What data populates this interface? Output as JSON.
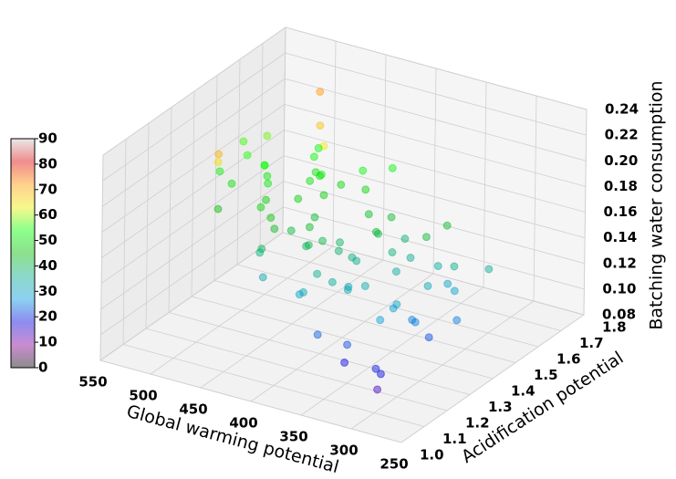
{
  "chart_data": {
    "type": "scatter3d",
    "xlabel": "Global warming potential",
    "ylabel": "Acidification potential",
    "zlabel": "Batching water consumption",
    "xlim": [
      550,
      250
    ],
    "xticks": [
      250,
      300,
      350,
      400,
      450,
      500,
      550
    ],
    "ylim": [
      1.0,
      1.8
    ],
    "yticks": [
      {
        "value": 1.0,
        "label": "1.0"
      },
      1.1,
      1.2,
      1.3,
      1.4,
      1.5,
      1.6,
      1.7,
      1.8
    ],
    "zlim": [
      0.08,
      0.24
    ],
    "zticks": [
      0.08,
      {
        "value": 0.1,
        "label": "0.10"
      },
      0.12,
      0.14,
      0.16,
      0.18,
      {
        "value": 0.2,
        "label": "0.20"
      },
      0.22,
      0.24
    ],
    "clim": [
      0,
      90
    ],
    "cticks": [
      0,
      10,
      20,
      30,
      40,
      50,
      60,
      70,
      80,
      90
    ],
    "colormap": [
      "#000000",
      "#880099",
      "#0000dd",
      "#0099dd",
      "#00aa88",
      "#00bb00",
      "#00ff00",
      "#eeee00",
      "#ff9900",
      "#dd0000",
      "#cccccc"
    ],
    "alpha": 0.45,
    "grid": true,
    "x": [
      310,
      325,
      340,
      355,
      370,
      385,
      400,
      415,
      430,
      445,
      460,
      475,
      490,
      505,
      330,
      350,
      365,
      380,
      395,
      410,
      425,
      440,
      455,
      470,
      485,
      320,
      345,
      360,
      375,
      390,
      405,
      420,
      435,
      450,
      465,
      480,
      495,
      335,
      352,
      368,
      383,
      398,
      412,
      428,
      442,
      458,
      472,
      488,
      315,
      338,
      362,
      378,
      392,
      408,
      422,
      438,
      452,
      468,
      482,
      498,
      305,
      342,
      372,
      402,
      432,
      462,
      492,
      318,
      348,
      388,
      418,
      448,
      478,
      332,
      358,
      398,
      438,
      468,
      345,
      425
    ],
    "y": [
      1.15,
      1.45,
      1.3,
      1.62,
      1.22,
      1.55,
      1.38,
      1.68,
      1.18,
      1.5,
      1.33,
      1.6,
      1.25,
      1.42,
      1.58,
      1.2,
      1.48,
      1.35,
      1.65,
      1.28,
      1.15,
      1.45,
      1.3,
      1.62,
      1.22,
      1.55,
      1.38,
      1.68,
      1.18,
      1.5,
      1.33,
      1.6,
      1.25,
      1.42,
      1.58,
      1.2,
      1.48,
      1.35,
      1.65,
      1.28,
      1.15,
      1.45,
      1.3,
      1.62,
      1.22,
      1.55,
      1.38,
      1.68,
      1.18,
      1.5,
      1.33,
      1.6,
      1.25,
      1.42,
      1.58,
      1.2,
      1.48,
      1.35,
      1.65,
      1.28,
      1.15,
      1.45,
      1.3,
      1.62,
      1.22,
      1.55,
      1.38,
      1.68,
      1.18,
      1.5,
      1.33,
      1.6,
      1.25,
      1.42,
      1.58,
      1.2,
      1.48,
      1.35,
      1.65,
      1.28
    ],
    "z": [
      0.106,
      0.09,
      0.119,
      0.118,
      0.152,
      0.131,
      0.15,
      0.174,
      0.148,
      0.185,
      0.196,
      0.18,
      0.209,
      0.208,
      0.128,
      0.11,
      0.129,
      0.153,
      0.127,
      0.164,
      0.175,
      0.159,
      0.188,
      0.187,
      0.221,
      0.092,
      0.117,
      0.141,
      0.115,
      0.152,
      0.163,
      0.147,
      0.176,
      0.175,
      0.209,
      0.188,
      0.207,
      0.126,
      0.101,
      0.139,
      0.15,
      0.134,
      0.162,
      0.162,
      0.195,
      0.175,
      0.193,
      0.218,
      0.085,
      0.121,
      0.137,
      0.122,
      0.15,
      0.15,
      0.183,
      0.163,
      0.181,
      0.206,
      0.179,
      0.217,
      0.103,
      0.1,
      0.138,
      0.146,
      0.189,
      0.177,
      0.205,
      0.116,
      0.099,
      0.151,
      0.171,
      0.164,
      0.202,
      0.104,
      0.145,
      0.139,
      0.173,
      0.206,
      0.097,
      0.173
    ],
    "c": [
      19,
      22,
      27,
      34,
      35,
      37,
      38,
      53,
      32,
      52,
      51,
      53,
      52,
      56,
      36,
      22,
      34,
      38,
      38,
      40,
      40,
      42,
      47,
      63,
      65,
      25,
      28,
      43,
      23,
      42,
      41,
      43,
      43,
      47,
      68,
      45,
      58,
      30,
      30,
      32,
      32,
      35,
      40,
      48,
      48,
      50,
      51,
      72,
      14,
      32,
      33,
      35,
      35,
      39,
      53,
      37,
      50,
      54,
      53,
      70,
      18,
      25,
      32,
      43,
      46,
      50,
      55,
      35,
      18,
      41,
      43,
      48,
      50,
      25,
      42,
      30,
      47,
      54,
      29,
      42
    ]
  }
}
